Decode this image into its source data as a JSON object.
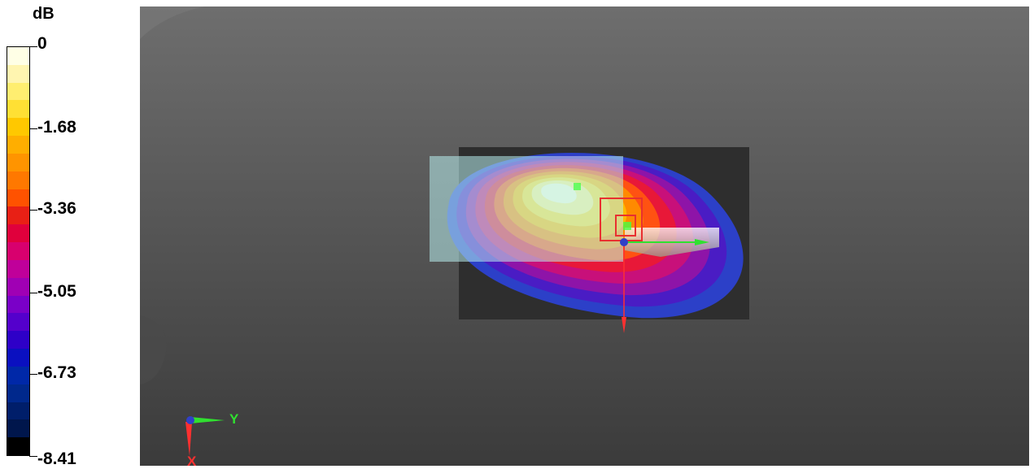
{
  "legend": {
    "unit": "dB",
    "ticks": [
      {
        "label": "0",
        "value": 0
      },
      {
        "label": "-1.68",
        "value": -1.68
      },
      {
        "label": "-3.36",
        "value": -3.36
      },
      {
        "label": "-5.05",
        "value": -5.05
      },
      {
        "label": "-6.73",
        "value": -6.73
      },
      {
        "label": "-8.41",
        "value": -8.41
      }
    ],
    "colors_top_to_bottom": [
      "#ffffe6",
      "#fff5b0",
      "#ffee70",
      "#ffe034",
      "#ffc800",
      "#ffae00",
      "#ff9400",
      "#ff7800",
      "#ff5200",
      "#e82015",
      "#e0003c",
      "#d8006e",
      "#c0009a",
      "#a000b4",
      "#7a00c8",
      "#5400cc",
      "#2e00c8",
      "#0a10c0",
      "#0028a8",
      "#00288c",
      "#001e6a",
      "#00164c",
      "#000000"
    ]
  },
  "scene": {
    "triad_labels": {
      "y": "Y",
      "x": "X"
    },
    "field_colors": [
      "#2c40c8",
      "#4a1cc4",
      "#8e14a8",
      "#c8107a",
      "#e81838",
      "#ff5212",
      "#ff8a00",
      "#ffb800",
      "#ffdc30",
      "#fff08a",
      "#fbfbd6"
    ],
    "marker_color": "#e83030",
    "pin_color": "#44ff44",
    "arrow_x_color": "#ff3030",
    "arrow_y_color": "#30e030",
    "arrow_z_color": "#3040c8"
  }
}
